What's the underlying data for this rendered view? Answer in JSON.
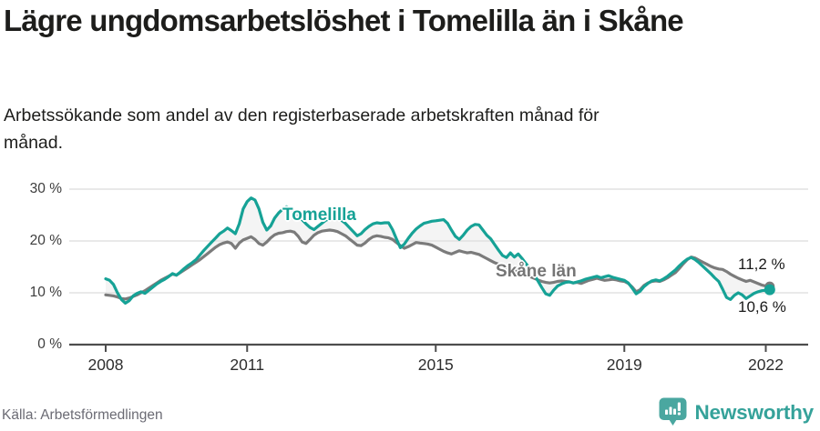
{
  "header": {
    "title": "Lägre ungdomsarbetslöshet i Tomelilla än i Skåne",
    "subtitle": "Arbetssökande som andel av den registerbaserade arbetskraften månad för månad."
  },
  "footer": {
    "source": "Källa: Arbetsförmedlingen",
    "brand": "Newsworthy"
  },
  "chart_data": {
    "type": "line",
    "title": "Lägre ungdomsarbetslöshet i Tomelilla än i Skåne",
    "subtitle": "Arbetssökande som andel av den registerbaserade arbetskraften månad för månad.",
    "x_unit": "month",
    "x_start": "2008-01",
    "x_end": "2022-02",
    "x_axis": {
      "ticks": [
        {
          "value": 2008,
          "label": "2008"
        },
        {
          "value": 2011,
          "label": "2011"
        },
        {
          "value": 2015,
          "label": "2015"
        },
        {
          "value": 2019,
          "label": "2019"
        },
        {
          "value": 2022,
          "label": "2022"
        }
      ]
    },
    "y_axis": {
      "ticks": [
        {
          "value": 0,
          "label": "0 %"
        },
        {
          "value": 10,
          "label": "10 %"
        },
        {
          "value": 20,
          "label": "20 %"
        },
        {
          "value": 30,
          "label": "30 %"
        }
      ],
      "grid_values": [
        10,
        20,
        30
      ],
      "ylim": [
        0,
        32
      ]
    },
    "grid": "horizontal",
    "legend_position": "inline-labels",
    "fill_between_color": "#f2f2f2",
    "gridline_color": "#dcdcdc",
    "axis_color": "#4d4d4d",
    "series": [
      {
        "name": "Tomelilla",
        "color": "#16a296",
        "end_label": "10,6 %",
        "end_value": 10.6,
        "values": [
          12.7,
          12.4,
          11.6,
          10.0,
          8.7,
          8.0,
          8.5,
          9.4,
          9.9,
          10.2,
          9.9,
          10.5,
          11.1,
          11.7,
          12.2,
          12.6,
          13.1,
          13.7,
          13.4,
          14.0,
          14.7,
          15.3,
          15.8,
          16.4,
          17.3,
          18.2,
          19.0,
          19.8,
          20.6,
          21.4,
          21.9,
          22.5,
          22.0,
          21.4,
          23.3,
          26.2,
          27.6,
          28.3,
          27.9,
          26.2,
          23.6,
          22.1,
          22.9,
          24.4,
          25.4,
          26.1,
          26.6,
          26.3,
          25.6,
          24.8,
          24.1,
          23.3,
          22.6,
          22.2,
          22.8,
          23.4,
          24.0,
          24.3,
          24.5,
          24.3,
          24.0,
          23.4,
          22.6,
          21.8,
          21.0,
          21.4,
          22.2,
          22.8,
          23.3,
          23.5,
          23.4,
          23.5,
          23.5,
          22.2,
          20.4,
          18.7,
          19.4,
          20.5,
          21.5,
          22.3,
          22.9,
          23.4,
          23.6,
          23.8,
          23.9,
          24.0,
          24.1,
          23.4,
          22.1,
          20.9,
          20.3,
          21.1,
          22.1,
          22.8,
          23.2,
          23.1,
          22.1,
          21.1,
          20.4,
          19.3,
          18.2,
          17.2,
          16.8,
          17.7,
          16.9,
          17.5,
          16.6,
          15.6,
          14.7,
          13.5,
          12.3,
          11.0,
          9.8,
          9.5,
          10.5,
          11.3,
          11.7,
          12.0,
          12.1,
          11.9,
          12.1,
          12.3,
          12.6,
          12.8,
          13.0,
          13.2,
          12.9,
          13.1,
          13.3,
          13.0,
          12.8,
          12.6,
          12.4,
          11.9,
          10.9,
          9.8,
          10.3,
          11.2,
          11.8,
          12.3,
          12.5,
          12.3,
          12.7,
          13.2,
          13.8,
          14.4,
          15.2,
          15.9,
          16.5,
          16.8,
          16.4,
          15.8,
          15.1,
          14.4,
          13.7,
          12.9,
          12.2,
          10.7,
          9.1,
          8.7,
          9.5,
          10.0,
          9.6,
          8.9,
          9.4,
          9.9,
          10.2,
          10.4,
          10.5,
          10.6
        ]
      },
      {
        "name": "Skåne län",
        "color": "#7b7b7b",
        "end_label": "11,2 %",
        "end_value": 11.2,
        "values": [
          9.6,
          9.5,
          9.4,
          9.2,
          8.9,
          8.8,
          9.0,
          9.3,
          9.6,
          10.0,
          10.4,
          10.9,
          11.4,
          11.9,
          12.4,
          12.8,
          13.2,
          13.6,
          13.4,
          13.9,
          14.4,
          14.9,
          15.4,
          15.9,
          16.4,
          17.0,
          17.6,
          18.2,
          18.8,
          19.3,
          19.6,
          19.8,
          19.5,
          18.6,
          19.6,
          20.2,
          20.5,
          20.8,
          20.3,
          19.5,
          19.2,
          19.8,
          20.6,
          21.2,
          21.5,
          21.6,
          21.8,
          21.9,
          21.7,
          20.9,
          19.8,
          19.5,
          20.3,
          21.1,
          21.6,
          21.9,
          22.0,
          22.1,
          22.0,
          21.8,
          21.4,
          21.0,
          20.4,
          19.8,
          19.2,
          19.1,
          19.6,
          20.3,
          20.8,
          21.0,
          20.9,
          20.7,
          20.6,
          20.3,
          19.7,
          19.1,
          18.6,
          18.9,
          19.3,
          19.7,
          19.6,
          19.5,
          19.4,
          19.2,
          18.8,
          18.4,
          18.0,
          17.7,
          17.5,
          17.8,
          18.1,
          17.9,
          17.7,
          17.8,
          17.6,
          17.4,
          17.0,
          16.6,
          16.2,
          15.8,
          15.5,
          15.2,
          14.9,
          14.6,
          14.3,
          14.0,
          13.7,
          13.4,
          13.1,
          12.8,
          12.5,
          12.2,
          12.0,
          11.9,
          12.0,
          12.2,
          12.3,
          12.2,
          12.1,
          11.9,
          12.0,
          11.8,
          12.1,
          12.4,
          12.6,
          12.8,
          12.6,
          12.4,
          12.5,
          12.6,
          12.5,
          12.3,
          12.2,
          11.8,
          11.1,
          10.2,
          10.6,
          11.4,
          11.9,
          12.2,
          12.3,
          12.2,
          12.5,
          12.9,
          13.4,
          13.9,
          14.7,
          15.6,
          16.4,
          16.9,
          16.7,
          16.3,
          15.9,
          15.5,
          15.1,
          14.8,
          14.6,
          14.5,
          14.1,
          13.6,
          13.2,
          12.8,
          12.5,
          12.2,
          12.4,
          12.1,
          11.8,
          11.5,
          11.3,
          11.2
        ]
      }
    ]
  }
}
